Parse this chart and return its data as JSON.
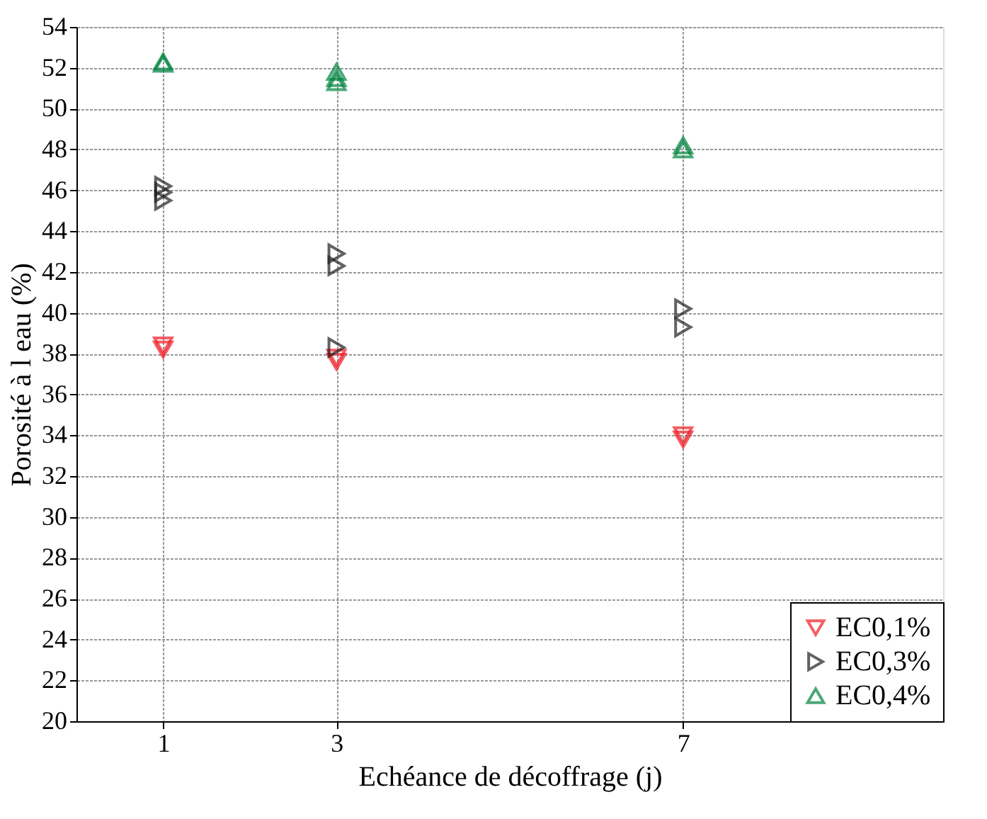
{
  "chart_data": {
    "type": "scatter",
    "xlabel": "Echéance de décoffrage (j)",
    "ylabel": "Porosité à l eau (%)",
    "xlim": [
      0,
      10
    ],
    "xticks": [
      1,
      3,
      7
    ],
    "ylim": [
      20,
      54
    ],
    "yticks": [
      20,
      22,
      24,
      26,
      28,
      30,
      32,
      34,
      36,
      38,
      40,
      42,
      44,
      46,
      48,
      50,
      52,
      54
    ],
    "grid": true,
    "legend": "bottom right",
    "series": [
      {
        "name": "EC0,1%",
        "color": "#ee1c25",
        "marker": "triangle-down",
        "x": [
          1,
          1,
          3,
          3,
          7,
          7
        ],
        "values": [
          38.4,
          38.2,
          37.8,
          37.6,
          34.0,
          33.8
        ]
      },
      {
        "name": "EC0,3%",
        "color": "#231f20",
        "marker": "triangle-right",
        "x": [
          1,
          1,
          1,
          3,
          3,
          3,
          7,
          7
        ],
        "values": [
          46.2,
          45.9,
          45.5,
          42.9,
          42.3,
          38.3,
          40.2,
          39.3
        ]
      },
      {
        "name": "EC0,4%",
        "color": "#00833e",
        "marker": "triangle-up",
        "x": [
          1,
          1,
          3,
          3,
          3,
          7,
          7
        ],
        "values": [
          52.3,
          52.2,
          51.8,
          51.5,
          51.3,
          48.2,
          48.0
        ]
      }
    ]
  }
}
